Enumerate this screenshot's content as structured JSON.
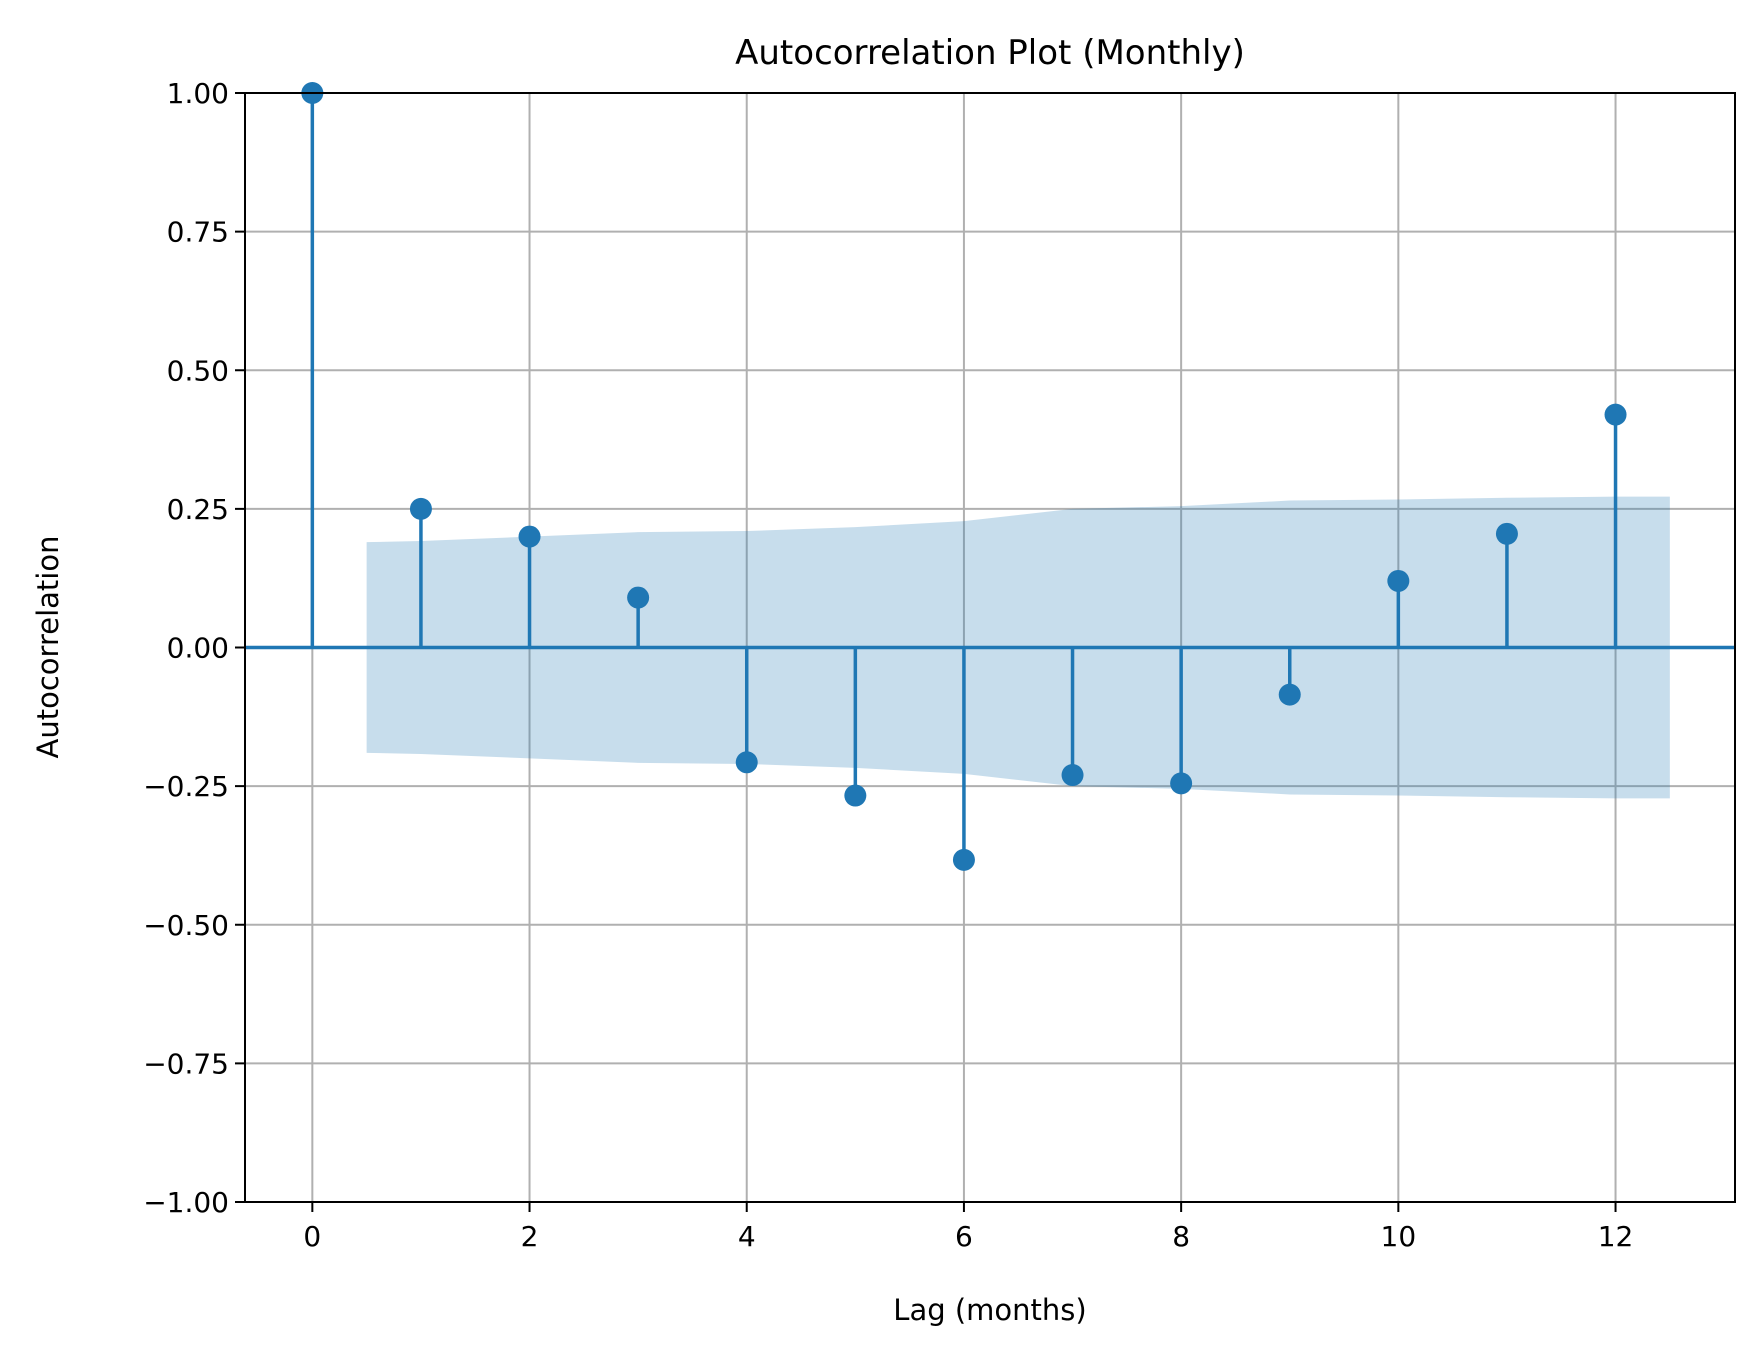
{
  "chart_data": {
    "type": "stem",
    "title": "Autocorrelation Plot (Monthly)",
    "xlabel": "Lag (months)",
    "ylabel": "Autocorrelation",
    "xlim": [
      -0.62,
      13.1
    ],
    "ylim": [
      -1.0,
      1.0
    ],
    "grid": true,
    "xticks": [
      0,
      2,
      4,
      6,
      8,
      10,
      12
    ],
    "xtick_labels": [
      "0",
      "2",
      "4",
      "6",
      "8",
      "10",
      "12"
    ],
    "yticks": [
      1.0,
      0.75,
      0.5,
      0.25,
      0.0,
      -0.25,
      -0.5,
      -0.75,
      -1.0
    ],
    "ytick_labels": [
      "1.00",
      "0.75",
      "0.50",
      "0.25",
      "0.00",
      "−0.25",
      "−0.50",
      "−0.75",
      "−1.00"
    ],
    "series": [
      {
        "x": [
          0,
          1,
          2,
          3,
          4,
          5,
          6,
          7,
          8,
          9,
          10,
          11,
          12
        ],
        "values": [
          1.0,
          0.25,
          0.2,
          0.09,
          -0.207,
          -0.267,
          -0.383,
          -0.23,
          -0.245,
          -0.085,
          0.12,
          0.205,
          0.42
        ]
      }
    ],
    "confidence_band": {
      "x": [
        0.5,
        1,
        2,
        3,
        4,
        5,
        6,
        7,
        8,
        9,
        10,
        11,
        12,
        12.5
      ],
      "upper": [
        0.19,
        0.192,
        0.2,
        0.208,
        0.21,
        0.217,
        0.228,
        0.25,
        0.255,
        0.265,
        0.267,
        0.27,
        0.272,
        0.272
      ],
      "lower": [
        -0.19,
        -0.192,
        -0.2,
        -0.208,
        -0.21,
        -0.217,
        -0.228,
        -0.25,
        -0.255,
        -0.265,
        -0.267,
        -0.27,
        -0.272,
        -0.272
      ]
    },
    "colors": {
      "stem": "#1f77b4",
      "band": "#1f77b4",
      "grid": "#b0b0b0"
    }
  }
}
